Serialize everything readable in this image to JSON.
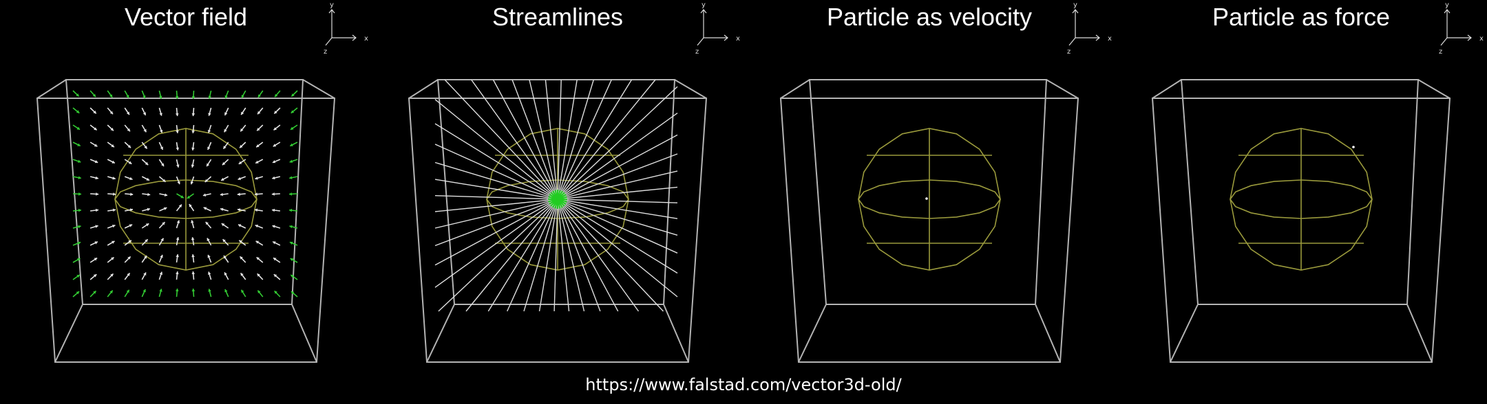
{
  "panels": [
    {
      "title": "Vector field",
      "mode": "vector-field"
    },
    {
      "title": "Streamlines",
      "mode": "streamlines"
    },
    {
      "title": "Particle as velocity",
      "mode": "particle-velocity"
    },
    {
      "title": "Particle as force",
      "mode": "particle-force"
    }
  ],
  "axes": {
    "x": "x",
    "y": "y",
    "z": "z"
  },
  "url": "https://www.falstad.com/vector3d-old/",
  "colors": {
    "background": "#000000",
    "box": "#b4b4b4",
    "sphere": "#9a9a3c",
    "arrow": "#e6e6e6",
    "arrow_edge": "#33cc33",
    "streamline": "#e0e0e0",
    "center": "#22cc22",
    "particle": "#ffffff"
  }
}
